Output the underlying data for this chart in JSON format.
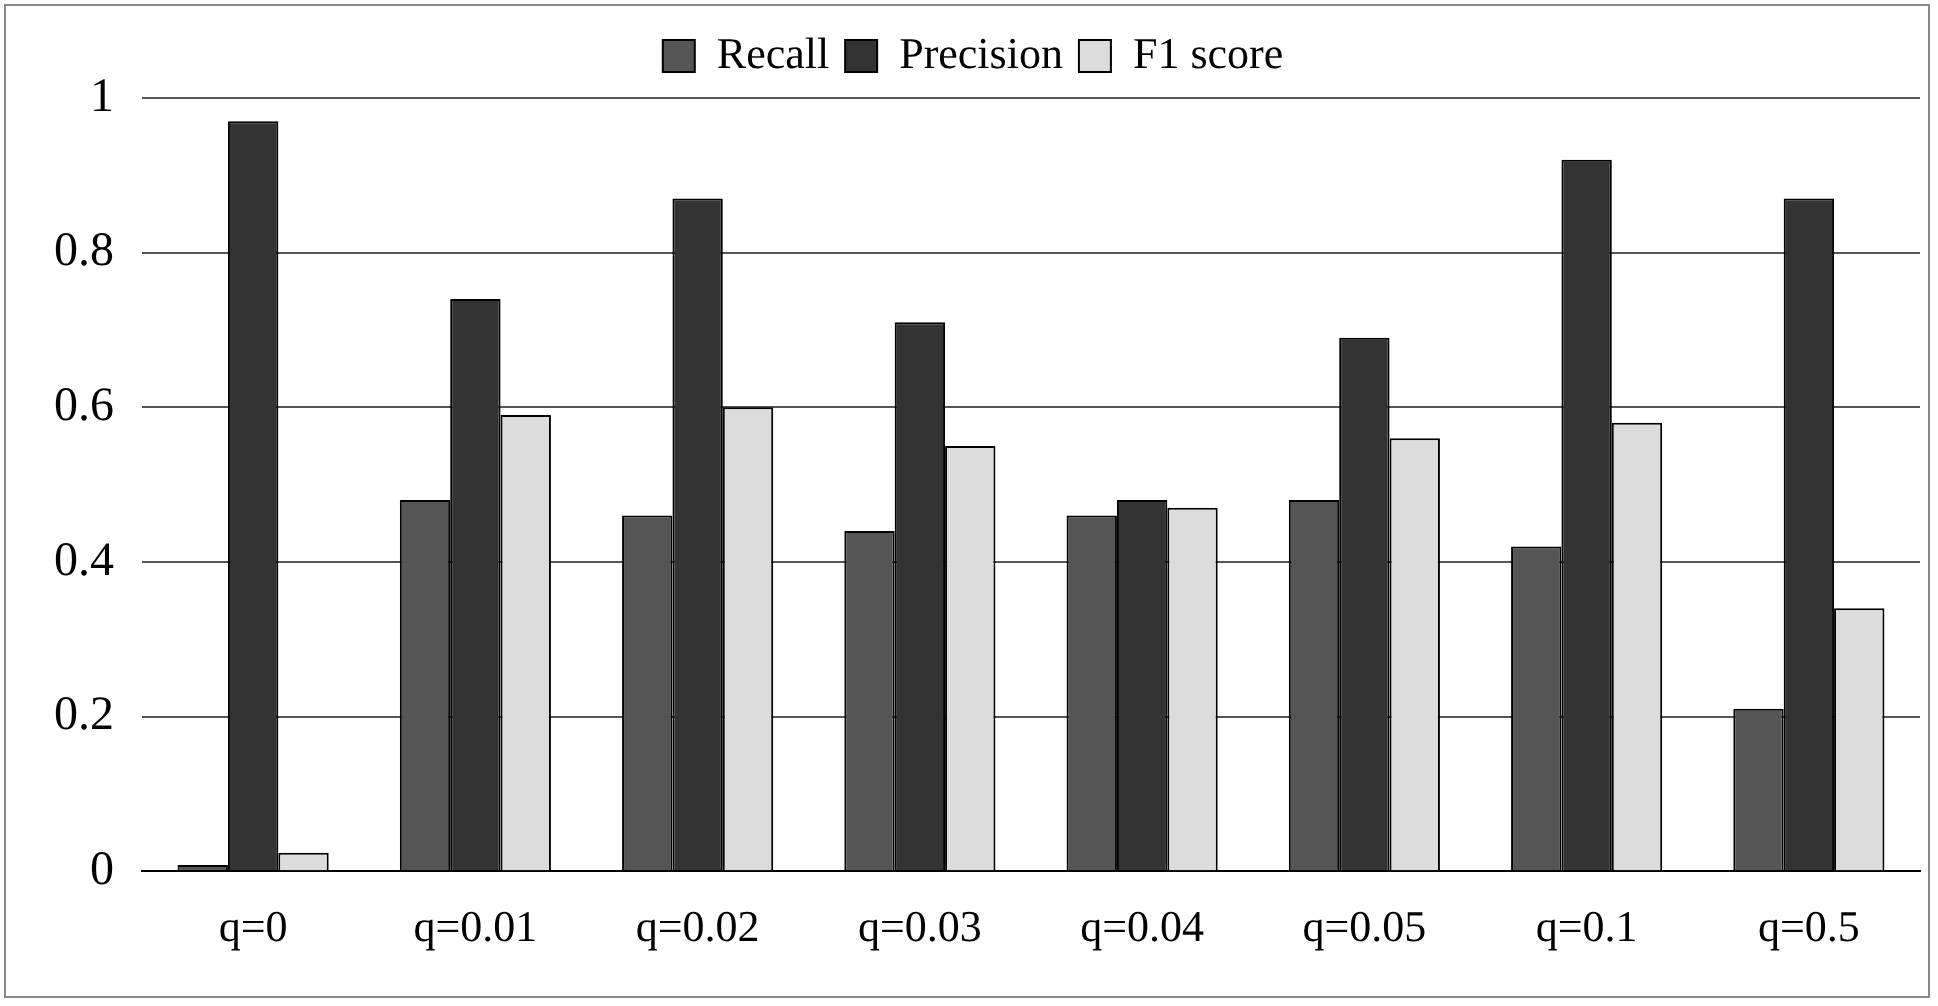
{
  "chart_data": {
    "type": "bar",
    "categories": [
      "q=0",
      "q=0.01",
      "q=0.02",
      "q=0.03",
      "q=0.04",
      "q=0.05",
      "q=0.1",
      "q=0.5"
    ],
    "series": [
      {
        "name": "Recall",
        "color": "#555555",
        "values": [
          0.008,
          0.48,
          0.46,
          0.44,
          0.46,
          0.48,
          0.42,
          0.21
        ]
      },
      {
        "name": "Precision",
        "color": "#333333",
        "values": [
          0.97,
          0.74,
          0.87,
          0.71,
          0.48,
          0.69,
          0.92,
          0.87
        ]
      },
      {
        "name": "F1 score",
        "color": "#dcdcdc",
        "values": [
          0.024,
          0.59,
          0.6,
          0.55,
          0.47,
          0.56,
          0.58,
          0.34
        ]
      }
    ],
    "ylim": [
      0,
      1
    ],
    "yticks": [
      0,
      0.2,
      0.4,
      0.6,
      0.8,
      1
    ],
    "grid": "y",
    "legend": "top"
  }
}
